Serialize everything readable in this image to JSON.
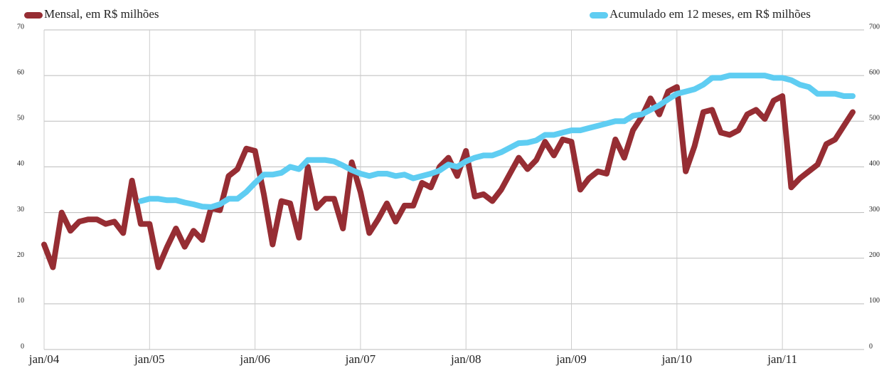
{
  "chart_data": {
    "type": "line",
    "categories": [
      "jan/04",
      null,
      null,
      null,
      null,
      null,
      null,
      null,
      null,
      null,
      null,
      null,
      "jan/05",
      null,
      null,
      null,
      null,
      null,
      null,
      null,
      null,
      null,
      null,
      null,
      "jan/06",
      null,
      null,
      null,
      null,
      null,
      null,
      null,
      null,
      null,
      null,
      null,
      "jan/07",
      null,
      null,
      null,
      null,
      null,
      null,
      null,
      null,
      null,
      null,
      null,
      "jan/08",
      null,
      null,
      null,
      null,
      null,
      null,
      null,
      null,
      null,
      null,
      null,
      "jan/09",
      null,
      null,
      null,
      null,
      null,
      null,
      null,
      null,
      null,
      null,
      null,
      "jan/10",
      null,
      null,
      null,
      null,
      null,
      null,
      null,
      null,
      null,
      null,
      null,
      "jan/11",
      null,
      null,
      null,
      null,
      null,
      null,
      null,
      null
    ],
    "series": [
      {
        "name": "Mensal, em R$ milhões",
        "color": "#962d33",
        "values": [
          23,
          18,
          30,
          26,
          28,
          28.5,
          28.5,
          27.5,
          28,
          25.5,
          37,
          27.5,
          27.5,
          18,
          22.5,
          26.5,
          22.5,
          26,
          24,
          31,
          30.5,
          38,
          39.5,
          44,
          43.5,
          34,
          23,
          32.5,
          32,
          24.5,
          40,
          31,
          33,
          33,
          26.5,
          41,
          34.5,
          25.5,
          28.5,
          32,
          28,
          31.5,
          31.5,
          36.5,
          35.5,
          40,
          42,
          38,
          43.5,
          33.5,
          34,
          32.5,
          35,
          38.5,
          42,
          39.5,
          41.5,
          45.5,
          42.5,
          46,
          45.5,
          35,
          37.5,
          39,
          38.5,
          46,
          42,
          48,
          51,
          55,
          51.5,
          56.5,
          57.5,
          39,
          44.5,
          52,
          52.5,
          47.5,
          47,
          48,
          51.5,
          52.5,
          50.5,
          54.5,
          55.5,
          35.5,
          37.5,
          39,
          40.5,
          45,
          46,
          49,
          52
        ]
      },
      {
        "name": "Acumulado em 12 meses, em R$ milhões",
        "color": "#5fcdf2",
        "axis": "y2",
        "values": [
          null,
          null,
          null,
          null,
          null,
          null,
          null,
          null,
          null,
          null,
          null,
          325,
          330,
          330,
          327,
          327,
          322,
          318,
          313,
          312,
          318,
          330,
          330,
          345,
          365,
          383,
          383,
          387,
          400,
          395,
          415,
          415,
          415,
          412,
          403,
          393,
          385,
          380,
          385,
          385,
          380,
          383,
          375,
          380,
          385,
          392,
          405,
          400,
          412,
          420,
          425,
          425,
          432,
          442,
          452,
          453,
          458,
          470,
          470,
          475,
          480,
          480,
          485,
          490,
          495,
          500,
          500,
          512,
          515,
          525,
          535,
          548,
          560,
          565,
          570,
          580,
          595,
          595,
          600,
          600,
          600,
          600,
          600,
          595,
          595,
          590,
          580,
          575,
          560,
          560,
          560,
          555,
          555
        ]
      }
    ],
    "ylim": [
      0,
      70
    ],
    "yticks": [
      0,
      10,
      20,
      30,
      40,
      50,
      60,
      70
    ],
    "y2lim": [
      0,
      700
    ],
    "y2ticks": [
      0,
      100,
      200,
      300,
      400,
      500,
      600,
      700
    ],
    "grid": true
  }
}
